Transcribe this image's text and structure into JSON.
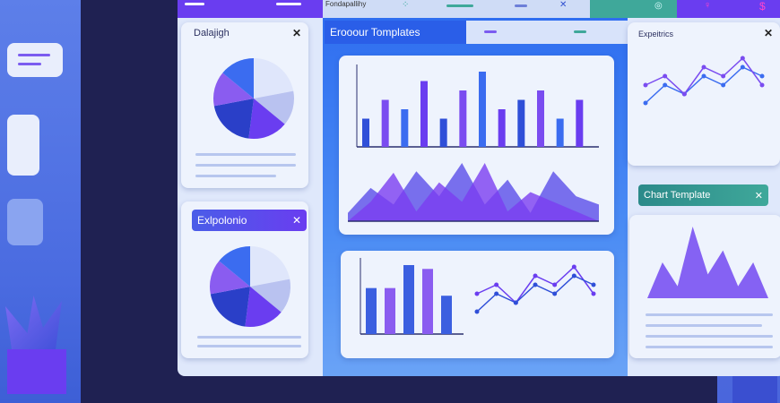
{
  "topbar": {
    "label": "Fondapallihy"
  },
  "left_card": {
    "title": "Dalajigh",
    "close": "✕"
  },
  "left_card2": {
    "title": "Exlpolonio",
    "close": "✕"
  },
  "center_tab": {
    "title": "Erooour Tomplates"
  },
  "right_card": {
    "title": "Expeitrics",
    "close": "✕"
  },
  "right_card2": {
    "title": "Chart Template",
    "close": "✕"
  },
  "colors": {
    "accent": "#6a3df0",
    "blue": "#2f5fe0",
    "teal": "#3fa89a",
    "navy": "#1f2152"
  },
  "charts": {
    "pie": [
      22,
      14,
      16,
      20,
      14,
      14
    ],
    "top_bars": [
      3,
      5,
      4,
      7,
      3,
      6,
      8,
      4,
      5,
      6,
      3,
      5
    ],
    "lower_bars": [
      6,
      6,
      9,
      8.5,
      5
    ],
    "lines_a": [
      4,
      5,
      3,
      6,
      5,
      7,
      4
    ],
    "lines_b": [
      2,
      4,
      3,
      5,
      4,
      6,
      5
    ]
  }
}
